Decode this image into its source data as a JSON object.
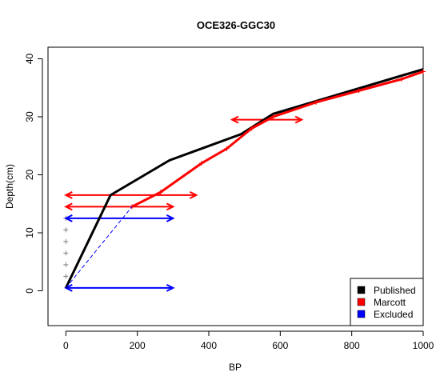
{
  "chart_data": {
    "type": "line",
    "title": "OCE326-GGC30",
    "xlabel": "BP",
    "ylabel": "Depth(cm)",
    "xlim": [
      -50,
      1000
    ],
    "ylim": [
      -6,
      42
    ],
    "xticks": [
      0,
      200,
      400,
      600,
      800,
      1000
    ],
    "yticks": [
      0,
      10,
      20,
      30,
      40
    ],
    "grid": false,
    "legend_position": "bottom-right",
    "series": [
      {
        "name": "Published",
        "color": "#000000",
        "style": "solid",
        "x": [
          0,
          125,
          290,
          490,
          580,
          1000
        ],
        "y": [
          0.5,
          16.5,
          22.5,
          27,
          30.5,
          38.2
        ]
      },
      {
        "name": "Marcott",
        "color": "#ff0000",
        "style": "solid",
        "markers": "plus",
        "x": [
          185,
          265,
          380,
          450,
          520,
          580,
          700,
          820,
          940,
          1000
        ],
        "y": [
          14.5,
          17,
          22,
          24.5,
          28,
          30,
          32.5,
          34.5,
          36.5,
          37.8
        ]
      },
      {
        "name": "Excluded",
        "color": "#0000ff",
        "style": "dashed",
        "x": [
          0,
          185
        ],
        "y": [
          0.5,
          14.5
        ]
      }
    ],
    "uncertainty_bars": [
      {
        "series": "Marcott",
        "y": 16.5,
        "x_min": 0,
        "x_max": 365
      },
      {
        "series": "Marcott",
        "y": 14.5,
        "x_min": 0,
        "x_max": 300
      },
      {
        "series": "Marcott",
        "y": 29.5,
        "x_min": 465,
        "x_max": 660
      },
      {
        "series": "Excluded",
        "y": 12.5,
        "x_min": 0,
        "x_max": 300
      },
      {
        "series": "Excluded",
        "y": 0.5,
        "x_min": 0,
        "x_max": 300
      }
    ],
    "gray_markers": {
      "color": "#808080",
      "x": [
        0,
        0,
        0,
        0,
        0,
        0
      ],
      "y": [
        2.5,
        4.5,
        6.5,
        8.5,
        10.5,
        12.5
      ]
    }
  }
}
